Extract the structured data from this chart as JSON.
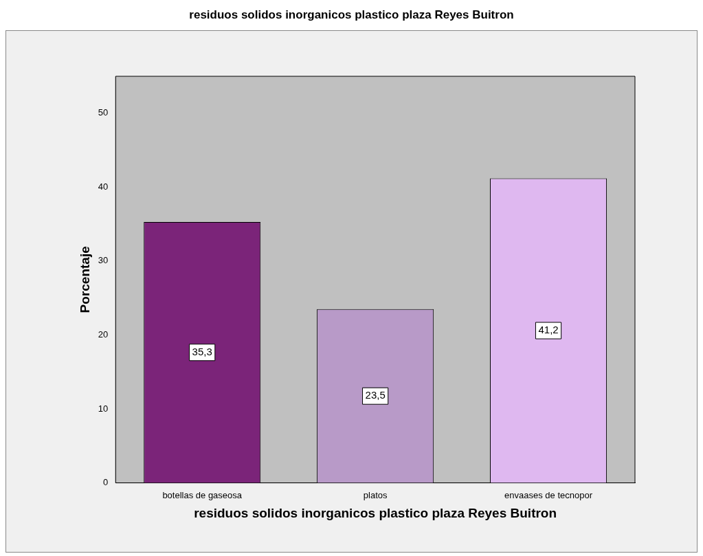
{
  "chart_data": {
    "type": "bar",
    "title": "residuos solidos inorganicos plastico plaza Reyes Buitron",
    "xlabel": "residuos solidos inorganicos plastico plaza Reyes Buitron",
    "ylabel": "Porcentaje",
    "categories": [
      "botellas de gaseosa",
      "platos",
      "envaases de tecnopor"
    ],
    "values": [
      35.3,
      23.5,
      41.2
    ],
    "colors": [
      "#7b2479",
      "#b89ac8",
      "#dfb8f0"
    ],
    "value_labels": [
      "35,3",
      "23,5",
      "41,2"
    ],
    "ylim": [
      0,
      55
    ],
    "yticks": [
      0,
      10,
      20,
      30,
      40,
      50
    ],
    "grid": false,
    "legend": false
  }
}
